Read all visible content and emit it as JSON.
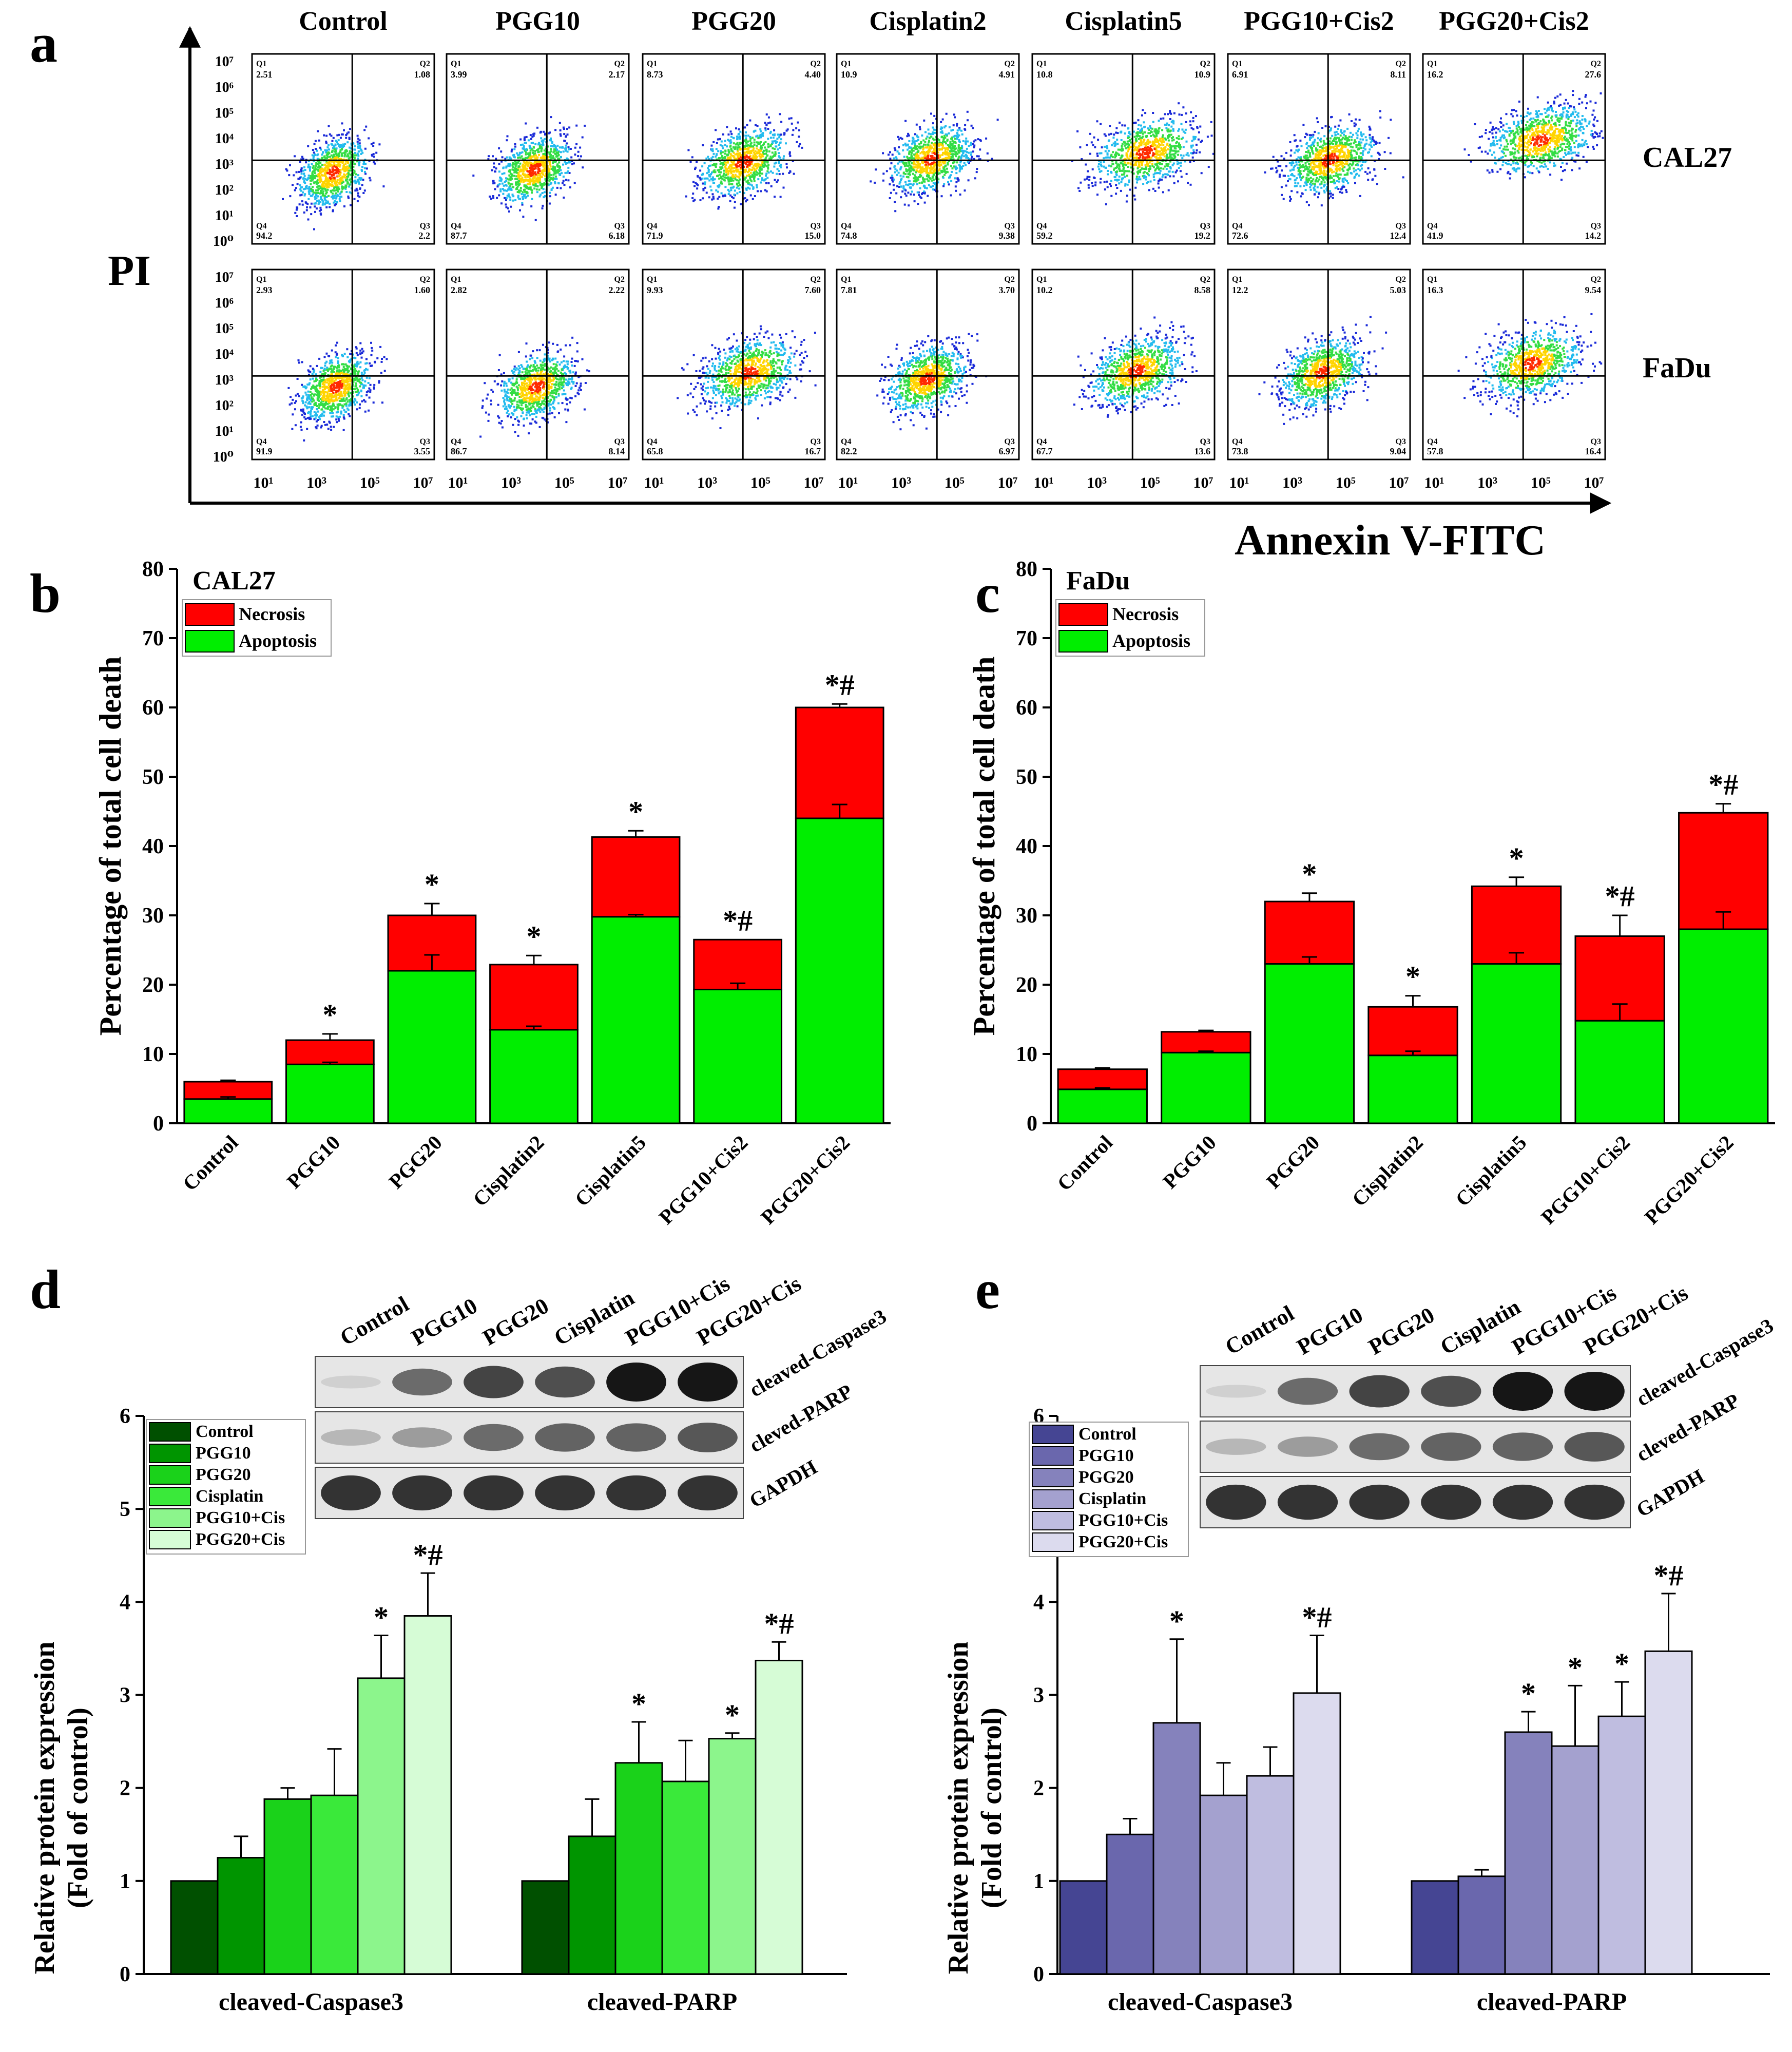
{
  "panel_labels": [
    "a",
    "b",
    "c",
    "d",
    "e"
  ],
  "flow": {
    "columns": [
      "Control",
      "PGG10",
      "PGG20",
      "Cisplatin2",
      "Cisplatin5",
      "PGG10+Cis2",
      "PGG20+Cis2"
    ],
    "rows": [
      "CAL27",
      "FaDu"
    ],
    "y_label": "PI",
    "x_label": "Annexin V-FITC",
    "y_ticks": [
      "10⁷",
      "10⁶",
      "10⁵",
      "10⁴",
      "10³",
      "10²",
      "10¹",
      "10⁰"
    ],
    "x_ticks": [
      "10¹",
      "10³",
      "10⁵",
      "10⁷"
    ],
    "quadrant_names": [
      "Q1",
      "Q2",
      "Q3",
      "Q4"
    ],
    "quadrants": {
      "CAL27": [
        {
          "q1": "2.51",
          "q2": "1.08",
          "q3": "2.2",
          "q4": "94.2"
        },
        {
          "q1": "3.99",
          "q2": "2.17",
          "q3": "6.18",
          "q4": "87.7"
        },
        {
          "q1": "8.73",
          "q2": "4.40",
          "q3": "15.0",
          "q4": "71.9"
        },
        {
          "q1": "10.9",
          "q2": "4.91",
          "q3": "9.38",
          "q4": "74.8"
        },
        {
          "q1": "10.8",
          "q2": "10.9",
          "q3": "19.2",
          "q4": "59.2"
        },
        {
          "q1": "6.91",
          "q2": "8.11",
          "q3": "12.4",
          "q4": "72.6"
        },
        {
          "q1": "16.2",
          "q2": "27.6",
          "q3": "14.2",
          "q4": "41.9"
        }
      ],
      "FaDu": [
        {
          "q1": "2.93",
          "q2": "1.60",
          "q3": "3.55",
          "q4": "91.9"
        },
        {
          "q1": "2.82",
          "q2": "2.22",
          "q3": "8.14",
          "q4": "86.7"
        },
        {
          "q1": "9.93",
          "q2": "7.60",
          "q3": "16.7",
          "q4": "65.8"
        },
        {
          "q1": "7.81",
          "q2": "3.70",
          "q3": "6.97",
          "q4": "82.2"
        },
        {
          "q1": "10.2",
          "q2": "8.58",
          "q3": "13.6",
          "q4": "67.7"
        },
        {
          "q1": "12.2",
          "q2": "5.03",
          "q3": "9.04",
          "q4": "73.8"
        },
        {
          "q1": "16.3",
          "q2": "9.54",
          "q3": "16.4",
          "q4": "57.8"
        }
      ]
    }
  },
  "blots": {
    "d": {
      "lanes": [
        "Control",
        "PGG10",
        "PGG20",
        "Cisplatin",
        "PGG10+Cis",
        "PGG20+Cis"
      ],
      "bands": [
        "cleaved-Caspase3",
        "cleved-PARP",
        "GAPDH"
      ]
    },
    "e": {
      "lanes": [
        "Control",
        "PGG10",
        "PGG20",
        "Cisplatin",
        "PGG10+Cis",
        "PGG20+Cis"
      ],
      "bands": [
        "cleaved-Caspase3",
        "cleved-PARP",
        "GAPDH"
      ]
    }
  },
  "chart_data": [
    {
      "panel": "b",
      "type": "bar",
      "stacked": true,
      "title": "CAL27",
      "xlabel": "",
      "ylabel": "Percentage of total cell death",
      "ylim": [
        0,
        80
      ],
      "yticks": [
        0,
        10,
        20,
        30,
        40,
        50,
        60,
        70,
        80
      ],
      "categories": [
        "Control",
        "PGG10",
        "PGG20",
        "Cisplatin2",
        "Cisplatin5",
        "PGG10+Cis2",
        "PGG20+Cis2"
      ],
      "series": [
        {
          "name": "Apoptosis",
          "color": "#00ee00",
          "values": [
            3.5,
            8.5,
            22,
            13.5,
            29.8,
            19.3,
            44
          ],
          "errors": [
            0.3,
            0.3,
            2.3,
            0.5,
            0.3,
            0.9,
            2
          ]
        },
        {
          "name": "Necrosis",
          "color": "#ff0000",
          "values": [
            2.5,
            3.5,
            8,
            9.4,
            11.5,
            7.2,
            16
          ],
          "errors": [
            0.2,
            0.9,
            1.7,
            1.3,
            0.9,
            0,
            0.5
          ]
        }
      ],
      "annotations": [
        "",
        "*",
        "*",
        "*",
        "*",
        "*#",
        "*#"
      ],
      "legend": [
        "Necrosis",
        "Apoptosis"
      ],
      "legend_position": "top-left"
    },
    {
      "panel": "c",
      "type": "bar",
      "stacked": true,
      "title": "FaDu",
      "xlabel": "",
      "ylabel": "Percentage of total cell death",
      "ylim": [
        0,
        80
      ],
      "yticks": [
        0,
        10,
        20,
        30,
        40,
        50,
        60,
        70,
        80
      ],
      "categories": [
        "Control",
        "PGG10",
        "PGG20",
        "Cisplatin2",
        "Cisplatin5",
        "PGG10+Cis2",
        "PGG20+Cis2"
      ],
      "series": [
        {
          "name": "Apoptosis",
          "color": "#00ee00",
          "values": [
            4.9,
            10.2,
            23,
            9.8,
            23,
            14.8,
            28
          ],
          "errors": [
            0.2,
            0.2,
            1,
            0.6,
            1.6,
            2.4,
            2.5
          ]
        },
        {
          "name": "Necrosis",
          "color": "#ff0000",
          "values": [
            2.9,
            3,
            9,
            7,
            11.2,
            12.2,
            16.8
          ],
          "errors": [
            0.2,
            0.2,
            1.2,
            1.6,
            1.3,
            3,
            1.3
          ]
        }
      ],
      "annotations": [
        "",
        "",
        "*",
        "*",
        "*",
        "*#",
        "*#"
      ],
      "legend": [
        "Necrosis",
        "Apoptosis"
      ],
      "legend_position": "top-left"
    },
    {
      "panel": "d",
      "type": "bar",
      "title": "",
      "xlabel": "",
      "ylabel": [
        "Relative protein expression",
        "(Fold of control)"
      ],
      "ylim": [
        0,
        6
      ],
      "yticks": [
        0,
        1,
        2,
        3,
        4,
        5,
        6
      ],
      "categories": [
        "cleaved-Caspase3",
        "cleaved-PARP"
      ],
      "series": [
        {
          "name": "Control",
          "color": "#005000",
          "values": [
            1,
            1
          ],
          "errors": [
            0,
            0
          ]
        },
        {
          "name": "PGG10",
          "color": "#009500",
          "values": [
            1.25,
            1.48
          ],
          "errors": [
            0.23,
            0.4
          ]
        },
        {
          "name": "PGG20",
          "color": "#1ad21a",
          "values": [
            1.88,
            2.27
          ],
          "errors": [
            0.12,
            0.44
          ]
        },
        {
          "name": "Cisplatin",
          "color": "#3ae93a",
          "values": [
            1.92,
            2.07
          ],
          "errors": [
            0.5,
            0.44
          ]
        },
        {
          "name": "PGG10+Cis",
          "color": "#8cf58c",
          "values": [
            3.18,
            2.53
          ],
          "errors": [
            0.46,
            0.06
          ]
        },
        {
          "name": "PGG20+Cis",
          "color": "#d6fcd6",
          "values": [
            3.85,
            3.37
          ],
          "errors": [
            0.46,
            0.2
          ]
        }
      ],
      "annotations": [
        [
          "",
          "",
          "",
          "",
          "*",
          "*#"
        ],
        [
          "",
          "",
          "*",
          "",
          "*",
          "*#"
        ]
      ],
      "legend_position": "top-left"
    },
    {
      "panel": "e",
      "type": "bar",
      "title": "",
      "xlabel": "",
      "ylabel": [
        "Relative protein expression",
        "(Fold of control)"
      ],
      "ylim": [
        0,
        6
      ],
      "yticks": [
        0,
        1,
        2,
        3,
        4,
        5,
        6
      ],
      "categories": [
        "cleaved-Caspase3",
        "cleaved-PARP"
      ],
      "series": [
        {
          "name": "Control",
          "color": "#454593",
          "values": [
            1,
            1
          ],
          "errors": [
            0,
            0
          ]
        },
        {
          "name": "PGG10",
          "color": "#6a67ad",
          "values": [
            1.5,
            1.05
          ],
          "errors": [
            0.17,
            0.07
          ]
        },
        {
          "name": "PGG20",
          "color": "#8582bc",
          "values": [
            2.7,
            2.6
          ],
          "errors": [
            0.9,
            0.22
          ]
        },
        {
          "name": "Cisplatin",
          "color": "#a4a1cf",
          "values": [
            1.92,
            2.45
          ],
          "errors": [
            0.35,
            0.65
          ]
        },
        {
          "name": "PGG10+Cis",
          "color": "#bfbde0",
          "values": [
            2.13,
            2.77
          ],
          "errors": [
            0.31,
            0.37
          ]
        },
        {
          "name": "PGG20+Cis",
          "color": "#dcdbee",
          "values": [
            3.02,
            3.47
          ],
          "errors": [
            0.62,
            0.62
          ]
        }
      ],
      "annotations": [
        [
          "",
          "",
          "*",
          "",
          "",
          "*#"
        ],
        [
          "",
          "",
          "*",
          "*",
          "*",
          "*#"
        ]
      ],
      "legend_position": "top-left"
    }
  ]
}
